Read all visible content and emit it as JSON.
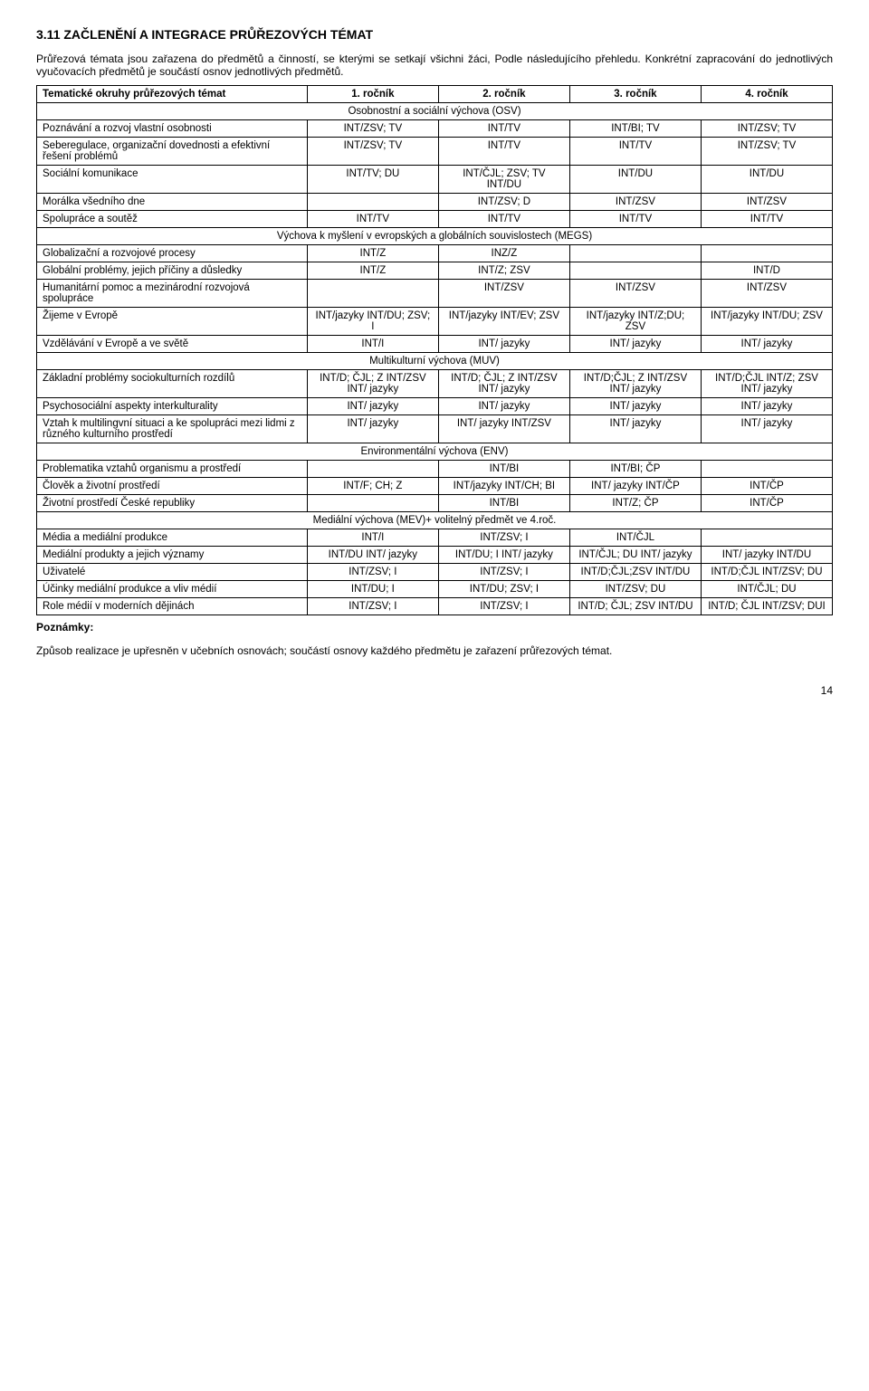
{
  "heading": "3.11 ZAČLENĚNÍ A INTEGRACE PRŮŘEZOVÝCH TÉMAT",
  "intro": "Průřezová témata jsou zařazena do předmětů a činností, se kterými se setkají všichni žáci, Podle následujícího přehledu. Konkrétní zapracování do jednotlivých vyučovacích předmětů je součástí osnov jednotlivých předmětů.",
  "header": {
    "c0": "Tematické okruhy průřezových témat",
    "c1": "1. ročník",
    "c2": "2. ročník",
    "c3": "3. ročník",
    "c4": "4. ročník"
  },
  "sec1": {
    "title": "Osobnostní a sociální výchova (OSV)"
  },
  "r1": {
    "c0": "Poznávání a rozvoj vlastní osobnosti",
    "c1": "INT/ZSV; TV",
    "c2": "INT/TV",
    "c3": "INT/BI; TV",
    "c4": "INT/ZSV; TV"
  },
  "r2": {
    "c0": "Seberegulace, organizační dovednosti a efektivní řešení problémů",
    "c1": "INT/ZSV; TV",
    "c2": "INT/TV",
    "c3": "INT/TV",
    "c4": "INT/ZSV; TV"
  },
  "r3": {
    "c0": "Sociální komunikace",
    "c1": "INT/TV; DU",
    "c2": "INT/ČJL; ZSV; TV INT/DU",
    "c3": "INT/DU",
    "c4": "INT/DU"
  },
  "r4": {
    "c0": "Morálka všedního dne",
    "c1": "",
    "c2": "INT/ZSV; D",
    "c3": "INT/ZSV",
    "c4": "INT/ZSV"
  },
  "r5": {
    "c0": "Spolupráce a soutěž",
    "c1": "INT/TV",
    "c2": "INT/TV",
    "c3": "INT/TV",
    "c4": "INT/TV"
  },
  "sec2": {
    "title": "Výchova k myšlení v evropských a globálních souvislostech (MEGS)"
  },
  "r6": {
    "c0": "Globalizační a rozvojové procesy",
    "c1": "INT/Z",
    "c2": "INZ/Z",
    "c3": "",
    "c4": ""
  },
  "r7": {
    "c0": "Globální problémy, jejich příčiny a důsledky",
    "c1": "INT/Z",
    "c2": "INT/Z; ZSV",
    "c3": "",
    "c4": "INT/D"
  },
  "r8": {
    "c0": "Humanitární pomoc a mezinárodní rozvojová spolupráce",
    "c1": "",
    "c2": "INT/ZSV",
    "c3": "INT/ZSV",
    "c4": "INT/ZSV"
  },
  "r9": {
    "c0": "Žijeme v Evropě",
    "c1": "INT/jazyky INT/DU; ZSV; I",
    "c2": "INT/jazyky INT/EV; ZSV",
    "c3": "INT/jazyky INT/Z;DU; ZSV",
    "c4": "INT/jazyky INT/DU; ZSV"
  },
  "r10": {
    "c0": "Vzdělávání v Evropě a ve světě",
    "c1": "INT/I",
    "c2": "INT/ jazyky",
    "c3": "INT/ jazyky",
    "c4": "INT/ jazyky"
  },
  "sec3": {
    "title": "Multikulturní výchova (MUV)"
  },
  "r11": {
    "c0": "Základní problémy sociokulturních rozdílů",
    "c1": "INT/D; ČJL; Z INT/ZSV INT/ jazyky",
    "c2": "INT/D; ČJL; Z INT/ZSV INT/ jazyky",
    "c3": "INT/D;ČJL; Z INT/ZSV INT/ jazyky",
    "c4": "INT/D;ČJL INT/Z; ZSV INT/ jazyky"
  },
  "r12": {
    "c0": "Psychosociální aspekty interkulturality",
    "c1": "INT/ jazyky",
    "c2": "INT/ jazyky",
    "c3": "INT/ jazyky",
    "c4": "INT/ jazyky"
  },
  "r13": {
    "c0": "Vztah k multilingvní situaci a ke spolupráci mezi lidmi z různého kulturního prostředí",
    "c1": "INT/ jazyky",
    "c2": "INT/ jazyky INT/ZSV",
    "c3": "INT/ jazyky",
    "c4": "INT/ jazyky"
  },
  "sec4": {
    "title": "Environmentální výchova (ENV)"
  },
  "r14": {
    "c0": "Problematika vztahů organismu a prostředí",
    "c1": "",
    "c2": "INT/BI",
    "c3": "INT/BI; ČP",
    "c4": ""
  },
  "r15": {
    "c0": "Člověk a životní prostředí",
    "c1": "INT/F; CH; Z",
    "c2": "INT/jazyky INT/CH; BI",
    "c3": "INT/ jazyky INT/ČP",
    "c4": "INT/ČP"
  },
  "r16": {
    "c0": "Životní prostředí České republiky",
    "c1": "",
    "c2": "INT/BI",
    "c3": "INT/Z; ČP",
    "c4": "INT/ČP"
  },
  "sec5": {
    "title": "Mediální výchova (MEV)+ volitelný předmět ve 4.roč."
  },
  "r17": {
    "c0": "Média a mediální produkce",
    "c1": "INT/I",
    "c2": "INT/ZSV; I",
    "c3": "INT/ČJL",
    "c4": ""
  },
  "r18": {
    "c0": "Mediální produkty a jejich významy",
    "c1": "INT/DU INT/ jazyky",
    "c2": "INT/DU; I INT/ jazyky",
    "c3": "INT/ČJL; DU INT/ jazyky",
    "c4": "INT/ jazyky INT/DU"
  },
  "r19": {
    "c0": "Uživatelé",
    "c1": "INT/ZSV; I",
    "c2": "INT/ZSV; I",
    "c3": "INT/D;ČJL;ZSV INT/DU",
    "c4": "INT/D;ČJL INT/ZSV; DU"
  },
  "r20": {
    "c0": "Účinky mediální produkce a vliv médií",
    "c1": "INT/DU; I",
    "c2": "INT/DU; ZSV; I",
    "c3": "INT/ZSV; DU",
    "c4": "INT/ČJL; DU"
  },
  "r21": {
    "c0": "Role médií v moderních dějinách",
    "c1": "INT/ZSV; I",
    "c2": "INT/ZSV; I",
    "c3": "INT/D; ČJL; ZSV INT/DU",
    "c4": "INT/D; ČJL INT/ZSV; DUI"
  },
  "notesLabel": "Poznámky:",
  "notes": "Způsob realizace je upřesněn v učebních osnovách; součástí osnovy každého předmětu je zařazení průřezových témat.",
  "pageNum": "14"
}
